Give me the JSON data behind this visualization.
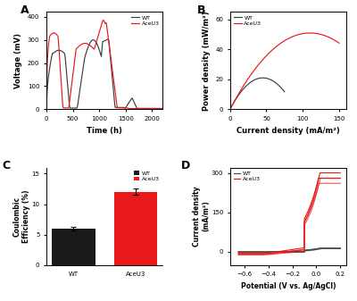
{
  "panel_A": {
    "title": "A",
    "xlabel": "Time (h)",
    "ylabel": "Voltage (mV)",
    "ylim": [
      0,
      420
    ],
    "xlim": [
      0,
      2200
    ],
    "xticks": [
      0,
      500,
      1000,
      1500,
      2000
    ],
    "yticks": [
      0,
      100,
      200,
      300,
      400
    ],
    "wt_color": "#3d3d3d",
    "ace_color": "#e8191a",
    "legend_labels": [
      "WT",
      "AceU3"
    ]
  },
  "panel_B": {
    "title": "B",
    "xlabel": "Current density (mA/m²)",
    "ylabel": "Power density (mW/m²)",
    "ylim": [
      0,
      65
    ],
    "xlim": [
      0,
      160
    ],
    "xticks": [
      0,
      50,
      100,
      150
    ],
    "yticks": [
      0,
      20,
      40,
      60
    ],
    "wt_color": "#3d3d3d",
    "ace_color": "#e8191a",
    "wt_peak_x": 45,
    "wt_peak_y": 21,
    "wt_end_x": 75,
    "ace_peak_x": 110,
    "ace_peak_y": 51,
    "ace_end_x": 150,
    "legend_labels": [
      "WT",
      "AceU3"
    ]
  },
  "panel_C": {
    "title": "C",
    "ylabel": "Coulombic\nEfficiency (%)",
    "xlabels": [
      "WT",
      "AceU3"
    ],
    "values": [
      6.0,
      12.0
    ],
    "errors": [
      0.3,
      0.5
    ],
    "bar_colors": [
      "#1a1a1a",
      "#e8191a"
    ],
    "ylim": [
      0,
      16
    ],
    "yticks": [
      0,
      5,
      10,
      15
    ],
    "legend_labels": [
      "WT",
      "AceU3"
    ]
  },
  "panel_D": {
    "title": "D",
    "xlabel": "Potential (V vs. Ag/AgCl)",
    "ylabel": "Current density\n(mA/m²)",
    "ylim": [
      -50,
      320
    ],
    "xlim": [
      -0.72,
      0.25
    ],
    "xticks": [
      -0.6,
      -0.4,
      -0.2,
      0.0,
      0.2
    ],
    "yticks": [
      0,
      150,
      300
    ],
    "wt_color": "#4d4d4d",
    "ace_color": "#e8191a",
    "legend_labels": [
      "WT",
      "AceU3"
    ]
  },
  "figure_bg": "#ffffff"
}
